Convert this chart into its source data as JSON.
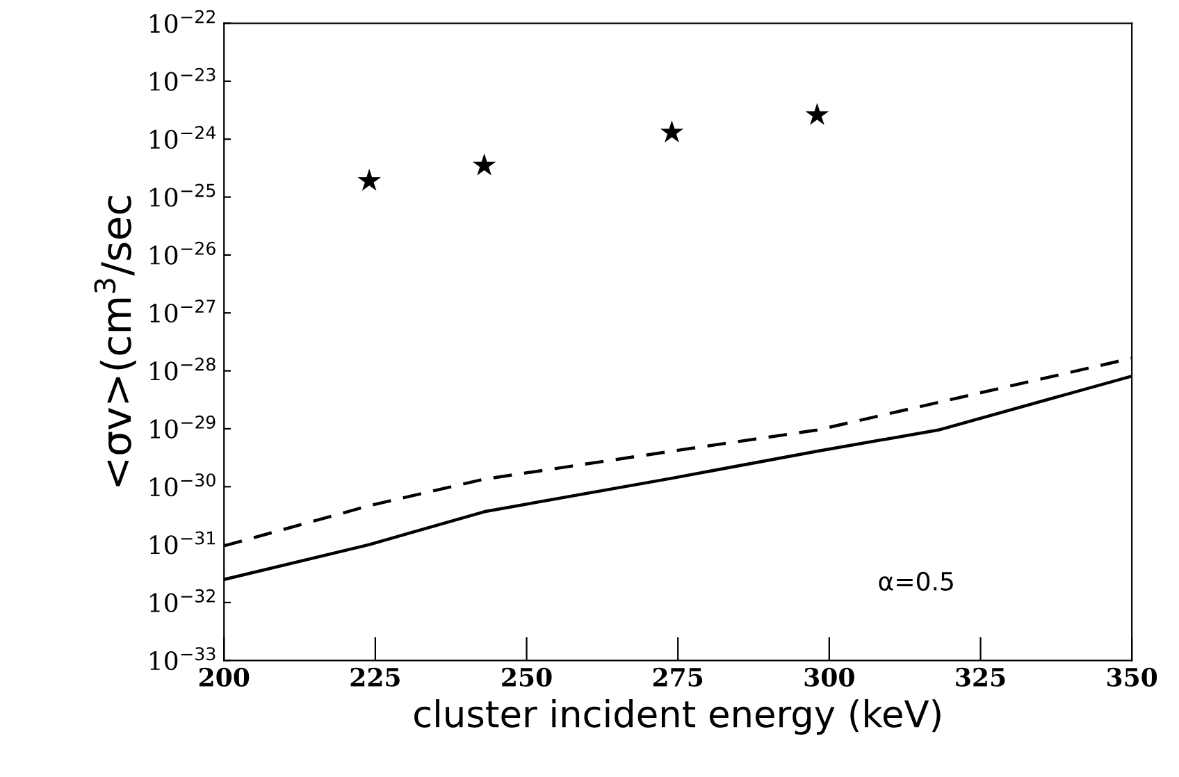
{
  "chart_data": {
    "type": "line",
    "xlabel": "cluster incident energy (keV)",
    "ylabel": "<σv>(cm$^{3}$/sec",
    "log": "y",
    "grid": false,
    "legend": false,
    "xlim": [
      200,
      350
    ],
    "xticks": [
      200,
      225,
      250,
      275,
      300,
      325,
      350
    ],
    "ylim": [
      1e-33,
      1e-22
    ],
    "yticks": [
      {
        "value": 1e-33,
        "label": "10$^{−33}$"
      },
      {
        "value": 1e-32,
        "label": "10$^{−32}$"
      },
      {
        "value": 1e-31,
        "label": "10$^{−31}$"
      },
      {
        "value": 1e-30,
        "label": "10$^{−30}$"
      },
      {
        "value": 1e-29,
        "label": "10$^{−29}$"
      },
      {
        "value": 1e-28,
        "label": "10$^{−28}$"
      },
      {
        "value": 1e-27,
        "label": "10$^{−27}$"
      },
      {
        "value": 1e-26,
        "label": "10$^{−26}$"
      },
      {
        "value": 1e-25,
        "label": "10$^{−25}$"
      },
      {
        "value": 1e-24,
        "label": "10$^{−24}$"
      },
      {
        "value": 1e-23,
        "label": "10$^{−23}$"
      },
      {
        "value": 1e-22,
        "label": "10$^{−22}$"
      }
    ],
    "series": [
      {
        "type": "scatter",
        "marker": "star",
        "color": "#000000",
        "x": [
          224,
          243,
          274,
          298
        ],
        "values": [
          1.9e-25,
          3.5e-25,
          1.3e-24,
          2.6e-24
        ]
      },
      {
        "line_style": "solid",
        "color": "#000000",
        "x": [
          200,
          224,
          243,
          274,
          298,
          318,
          350
        ],
        "values": [
          2.5e-32,
          1e-31,
          3.7e-31,
          1.4e-30,
          4.1e-30,
          9.5e-30,
          8.1e-29
        ]
      },
      {
        "line_style": "dashed",
        "color": "#000000",
        "x": [
          200,
          224,
          243,
          274,
          298,
          350
        ],
        "values": [
          9.5e-32,
          4.7e-31,
          1.35e-30,
          4.1e-30,
          9.5e-30,
          1.65e-28
        ]
      }
    ],
    "annotations": [
      "α=0.5"
    ]
  }
}
